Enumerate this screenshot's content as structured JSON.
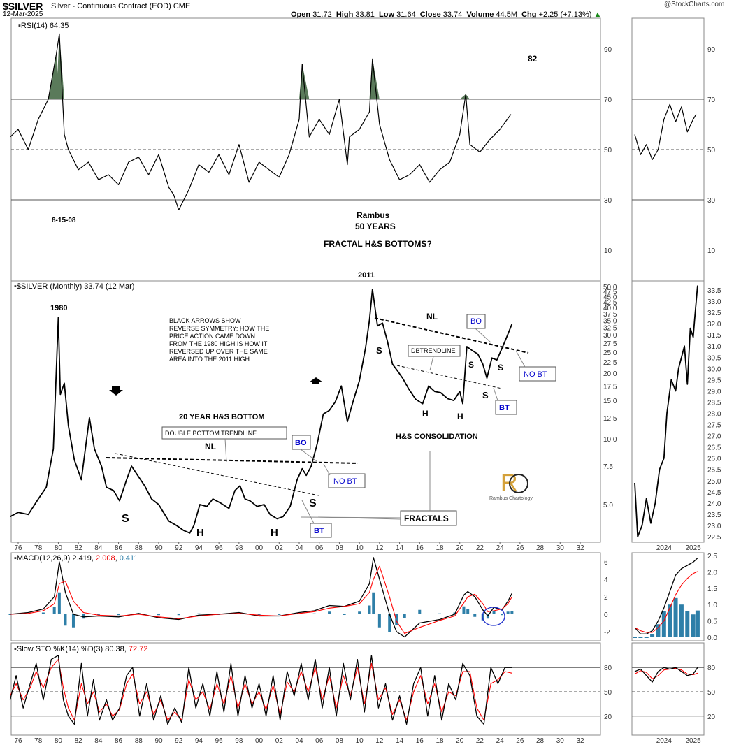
{
  "header": {
    "symbol": "$SILVER",
    "description": "Silver - Continuous Contract (EOD)",
    "exchange": "CME",
    "date": "12-Mar-2025",
    "open_label": "Open",
    "open": "31.72",
    "high_label": "High",
    "high": "33.81",
    "low_label": "Low",
    "low": "31.64",
    "close_label": "Close",
    "close": "33.74",
    "volume_label": "Volume",
    "volume": "44.5M",
    "chg_label": "Chg",
    "chg": "+2.25 (+7.13%)",
    "brand": "@StockCharts.com"
  },
  "colors": {
    "price": "#000000",
    "macd_signal": "#ff0000",
    "histogram": "#2e7fa8",
    "rsi_fill": "#5a7a5a",
    "annotation_blue": "#0000cc",
    "grid": "#cccccc"
  },
  "chart_data": [
    {
      "type": "line",
      "panel": "rsi",
      "legend": "RSI(14) 64.35",
      "ylim": [
        0,
        100
      ],
      "y_ticks": [
        "90",
        "70",
        "50",
        "30",
        "10"
      ],
      "reference_lines": [
        70,
        50,
        30
      ],
      "x": [
        1975.2,
        1976,
        1977,
        1978,
        1979,
        1979.8,
        1980.1,
        1980.6,
        1981,
        1982,
        1983,
        1984,
        1985,
        1986,
        1987,
        1988,
        1989,
        1990,
        1991,
        1991.5,
        1992,
        1993,
        1994,
        1995,
        1996,
        1997,
        1998,
        1999,
        2000,
        2001,
        2002,
        2003,
        2004,
        2004.3,
        2005,
        2006,
        2007,
        2008,
        2008.8,
        2009,
        2010,
        2011,
        2011.3,
        2012,
        2013,
        2014,
        2015,
        2016,
        2017,
        2018,
        2019,
        2020,
        2020.6,
        2021,
        2022,
        2023,
        2024,
        2025.1
      ],
      "values": [
        55,
        58,
        50,
        62,
        70,
        88,
        96,
        56,
        50,
        42,
        45,
        38,
        40,
        36,
        45,
        47,
        40,
        48,
        35,
        32,
        26,
        34,
        44,
        41,
        48,
        40,
        52,
        37,
        45,
        42,
        39,
        48,
        62,
        84,
        55,
        62,
        56,
        70,
        44,
        55,
        58,
        65,
        86,
        60,
        46,
        38,
        40,
        44,
        37,
        42,
        45,
        56,
        72,
        52,
        49,
        54,
        58,
        64
      ],
      "annotations": [
        "8-15-08",
        "82"
      ]
    },
    {
      "type": "line",
      "panel": "rsi-daily",
      "x": [
        2023.0,
        2023.2,
        2023.4,
        2023.6,
        2023.8,
        2024.0,
        2024.2,
        2024.4,
        2024.6,
        2024.8,
        2025.0,
        2025.1
      ],
      "values": [
        56,
        48,
        52,
        46,
        50,
        62,
        68,
        61,
        67,
        57,
        62,
        64
      ],
      "y_ticks": [
        "90",
        "70",
        "50",
        "30",
        "10"
      ]
    },
    {
      "type": "line",
      "panel": "price",
      "legend": "$SILVER (Monthly) 33.74 (12 Mar)",
      "y_ticks": [
        "50.0",
        "47.5",
        "45.0",
        "42.5",
        "40.0",
        "37.5",
        "35.0",
        "32.5",
        "30.0",
        "27.5",
        "25.0",
        "22.5",
        "20.0",
        "17.5",
        "15.0",
        "12.5",
        "10.0",
        "7.5",
        "5.0"
      ],
      "x_ticks": [
        "76",
        "78",
        "80",
        "82",
        "84",
        "86",
        "88",
        "90",
        "92",
        "94",
        "96",
        "98",
        "00",
        "02",
        "04",
        "06",
        "08",
        "10",
        "12",
        "14",
        "16",
        "18",
        "20",
        "22",
        "24",
        "26",
        "28",
        "30",
        "32"
      ],
      "x": [
        1975.2,
        1976,
        1977,
        1978,
        1978.8,
        1979.5,
        1980.0,
        1980.2,
        1980.6,
        1981,
        1981.6,
        1982.3,
        1983.1,
        1983.6,
        1984.3,
        1984.8,
        1985.5,
        1986.1,
        1986.8,
        1987.3,
        1987.9,
        1988.6,
        1989.3,
        1990,
        1991,
        1991.8,
        1992.5,
        1993.1,
        1993.5,
        1994.1,
        1994.8,
        1995.4,
        1996.1,
        1997,
        1997.6,
        1998.1,
        1998.6,
        1999.1,
        1999.8,
        2000.5,
        2001.1,
        2001.8,
        2002.4,
        2003.1,
        2003.8,
        2004.3,
        2004.7,
        2005.2,
        2005.8,
        2006.4,
        2007.0,
        2007.6,
        2008.2,
        2008.8,
        2009.4,
        2010.0,
        2010.6,
        2011.0,
        2011.3,
        2011.8,
        2012.3,
        2012.8,
        2013.3,
        2013.8,
        2014.3,
        2014.9,
        2015.6,
        2016.3,
        2016.9,
        2017.5,
        2018.1,
        2018.8,
        2019.4,
        2020.0,
        2020.3,
        2020.7,
        2021.2,
        2021.8,
        2022.3,
        2022.7,
        2023.2,
        2023.7,
        2024.2,
        2024.7,
        2025.2
      ],
      "values": [
        4.4,
        4.6,
        4.5,
        5.3,
        6.0,
        9.0,
        36.0,
        16.0,
        18.0,
        11.5,
        8.0,
        6.5,
        12.5,
        9.0,
        7.5,
        6.0,
        5.8,
        5.2,
        6.5,
        7.5,
        6.8,
        6.1,
        5.3,
        5.0,
        4.2,
        4.0,
        3.8,
        3.7,
        4.0,
        5.0,
        4.9,
        5.3,
        5.1,
        4.8,
        5.8,
        6.1,
        5.3,
        5.2,
        4.9,
        5.0,
        4.5,
        4.3,
        4.4,
        4.9,
        6.5,
        7.3,
        6.8,
        7.5,
        9.5,
        13.0,
        13.5,
        14.8,
        17.5,
        12.0,
        15.0,
        18.5,
        26.0,
        35.0,
        48.5,
        33.0,
        34.0,
        28.0,
        22.0,
        20.5,
        19.0,
        17.0,
        15.2,
        14.5,
        17.5,
        16.5,
        16.3,
        15.3,
        15.0,
        16.5,
        14.5,
        26.5,
        25.5,
        24.5,
        22.0,
        19.0,
        23.5,
        23.0,
        26.0,
        29.5,
        33.7
      ],
      "annotations": [
        "1980",
        "2011",
        "BLACK ARROWS SHOW",
        "REVERSE SYMMETRY: HOW THE",
        "PRICE ACTION CAME DOWN",
        "FROM THE 1980 HIGH IS HOW IT",
        "REVERSED UP OVER THE SAME",
        "AREA INTO THE 2011 HIGH",
        "20 YEAR H&S BOTTOM",
        "DOUBLE BOTTOM TRENDLINE",
        "NL",
        "BO",
        "NO BT",
        "BT",
        "S",
        "H",
        "H",
        "S",
        "FRACTALS",
        "H&S CONSOLIDATION",
        "DBTRENDLINE",
        "NL",
        "BO",
        "NO BT",
        "BT",
        "S",
        "S",
        "S",
        "S",
        "H",
        "H",
        "Rambus",
        "50 YEARS",
        "FRACTAL H&S BOTTOMS?",
        "Rambus Chartology"
      ]
    },
    {
      "type": "line",
      "panel": "price-daily",
      "x_ticks": [
        "2024",
        "2025"
      ],
      "y_ticks": [
        "33.5",
        "33.0",
        "32.5",
        "32.0",
        "31.5",
        "31.0",
        "30.5",
        "30.0",
        "29.5",
        "29.0",
        "28.5",
        "28.0",
        "27.5",
        "27.0",
        "26.5",
        "26.0",
        "25.5",
        "25.0",
        "24.5",
        "24.0",
        "23.5",
        "23.0",
        "22.5"
      ],
      "x": [
        2023.0,
        2023.1,
        2023.25,
        2023.4,
        2023.55,
        2023.7,
        2023.85,
        2024.0,
        2024.1,
        2024.25,
        2024.4,
        2024.5,
        2024.6,
        2024.7,
        2024.8,
        2024.9,
        2025.0,
        2025.05,
        2025.15
      ],
      "values": [
        24.9,
        22.5,
        23.0,
        24.2,
        23.1,
        24.0,
        25.5,
        26.0,
        28.0,
        29.5,
        29.0,
        30.0,
        30.5,
        31.0,
        29.3,
        31.8,
        31.4,
        32.2,
        33.7
      ]
    },
    {
      "type": "line",
      "panel": "macd",
      "legend": [
        "MACD(12,26,9)",
        "2.419",
        "2.008",
        "0.411"
      ],
      "y_ticks": [
        "6",
        "4",
        "2",
        "0",
        "-2"
      ],
      "x": [
        1975.2,
        1977,
        1978.5,
        1979.6,
        1980.1,
        1980.7,
        1981.5,
        1982.5,
        1984,
        1986,
        1988,
        1990,
        1992,
        1994,
        1996,
        1998,
        2000,
        2002,
        2004,
        2005.5,
        2007,
        2008.5,
        2010,
        2011.0,
        2011.4,
        2012,
        2013,
        2013.7,
        2014.5,
        2016,
        2018,
        2019.5,
        2020.4,
        2020.8,
        2021.5,
        2022.3,
        2022.8,
        2023.4,
        2024.2,
        2024.8,
        2025.2
      ],
      "values": [
        0,
        0.2,
        0.6,
        2.0,
        6.0,
        2.5,
        0.0,
        -0.3,
        -0.2,
        -0.3,
        0.1,
        -0.4,
        -0.6,
        -0.1,
        0.0,
        0.2,
        -0.2,
        -0.2,
        0.2,
        0.4,
        1.0,
        0.9,
        1.5,
        3.5,
        6.5,
        4.0,
        0.0,
        -2.0,
        -2.6,
        -1.0,
        -0.6,
        0.0,
        2.2,
        2.6,
        2.0,
        0.5,
        -0.2,
        0.8,
        0.5,
        1.5,
        2.4
      ],
      "signal": [
        0,
        0.1,
        0.4,
        1.2,
        3.5,
        3.8,
        1.5,
        0.2,
        -0.1,
        -0.2,
        0.0,
        -0.3,
        -0.5,
        -0.2,
        0.0,
        0.1,
        -0.1,
        -0.2,
        0.1,
        0.3,
        0.7,
        0.9,
        1.2,
        2.5,
        4.0,
        5.5,
        2.0,
        -0.8,
        -2.2,
        -1.5,
        -0.7,
        -0.2,
        1.3,
        2.0,
        2.3,
        1.2,
        0.3,
        0.4,
        0.6,
        1.2,
        2.0
      ]
    },
    {
      "type": "line",
      "panel": "macd-daily",
      "x": [
        2023.0,
        2023.2,
        2023.4,
        2023.6,
        2023.8,
        2024.0,
        2024.2,
        2024.4,
        2024.6,
        2024.8,
        2025.0,
        2025.15
      ],
      "values": [
        0.3,
        0.1,
        0.1,
        0.2,
        0.5,
        0.9,
        1.4,
        1.9,
        2.1,
        2.2,
        2.3,
        2.42
      ],
      "signal": [
        0.3,
        0.2,
        0.15,
        0.15,
        0.3,
        0.5,
        0.9,
        1.3,
        1.6,
        1.8,
        1.95,
        2.01
      ],
      "y_ticks": [
        "2.5",
        "2.0",
        "1.5",
        "1.0",
        "0.5",
        "0.0"
      ]
    },
    {
      "type": "line",
      "panel": "stochastic",
      "legend": [
        "Slow STO %K(14) %D(3)",
        "80.38",
        "72.72"
      ],
      "y_ticks": [
        "80",
        "50",
        "20"
      ],
      "reference_lines": [
        80,
        50,
        20
      ],
      "x_ticks": [
        "76",
        "78",
        "80",
        "82",
        "84",
        "86",
        "88",
        "90",
        "92",
        "94",
        "96",
        "98",
        "00",
        "02",
        "04",
        "06",
        "08",
        "10",
        "12",
        "14",
        "16",
        "18",
        "20",
        "22",
        "24",
        "26",
        "28",
        "30",
        "32"
      ],
      "x": [
        1975.2,
        1975.8,
        1976.5,
        1977.2,
        1977.8,
        1978.5,
        1979.3,
        1980.0,
        1980.5,
        1981.0,
        1981.6,
        1982.3,
        1982.9,
        1983.5,
        1984.1,
        1984.8,
        1985.4,
        1986.1,
        1986.8,
        1987.4,
        1988.1,
        1988.8,
        1989.5,
        1990.2,
        1990.9,
        1991.6,
        1992.3,
        1993.0,
        1993.7,
        1994.4,
        1995.1,
        1995.8,
        1996.5,
        1997.2,
        1997.9,
        1998.6,
        1999.3,
        2000.0,
        2000.7,
        2001.4,
        2002.1,
        2002.8,
        2003.5,
        2004.2,
        2004.9,
        2005.6,
        2006.3,
        2007.0,
        2007.7,
        2008.4,
        2009.1,
        2009.8,
        2010.5,
        2011.2,
        2011.9,
        2012.6,
        2013.3,
        2014.0,
        2014.7,
        2015.4,
        2016.1,
        2016.8,
        2017.5,
        2018.2,
        2018.9,
        2019.6,
        2020.3,
        2021.0,
        2021.7,
        2022.4,
        2023.1,
        2023.8,
        2024.5,
        2025.2
      ],
      "values": [
        40,
        70,
        30,
        60,
        85,
        40,
        90,
        95,
        40,
        20,
        10,
        85,
        20,
        65,
        15,
        40,
        15,
        30,
        70,
        80,
        20,
        60,
        15,
        45,
        10,
        30,
        12,
        80,
        30,
        60,
        20,
        75,
        25,
        85,
        20,
        70,
        30,
        60,
        20,
        70,
        15,
        75,
        45,
        85,
        40,
        90,
        30,
        80,
        20,
        85,
        40,
        90,
        25,
        95,
        30,
        60,
        15,
        45,
        10,
        60,
        80,
        20,
        70,
        15,
        60,
        40,
        85,
        70,
        20,
        10,
        80,
        60,
        80,
        80
      ],
      "signal": [
        45,
        60,
        40,
        55,
        75,
        55,
        80,
        90,
        55,
        30,
        15,
        60,
        35,
        50,
        25,
        35,
        20,
        28,
        60,
        72,
        35,
        50,
        22,
        40,
        15,
        25,
        15,
        65,
        40,
        50,
        28,
        60,
        35,
        70,
        30,
        60,
        35,
        50,
        28,
        58,
        22,
        62,
        50,
        75,
        50,
        80,
        40,
        70,
        30,
        70,
        45,
        80,
        35,
        85,
        40,
        55,
        22,
        40,
        15,
        50,
        70,
        35,
        60,
        25,
        50,
        45,
        75,
        75,
        30,
        15,
        60,
        65,
        75,
        73
      ]
    },
    {
      "type": "line",
      "panel": "stochastic-daily",
      "x_ticks": [
        "2024",
        "2025"
      ],
      "y_ticks": [
        "80",
        "50",
        "20"
      ],
      "x": [
        2023.0,
        2023.2,
        2023.4,
        2023.6,
        2023.8,
        2024.0,
        2024.2,
        2024.4,
        2024.6,
        2024.8,
        2025.0,
        2025.15
      ],
      "values": [
        75,
        78,
        70,
        62,
        75,
        80,
        78,
        80,
        75,
        70,
        72,
        80
      ],
      "signal": [
        72,
        76,
        74,
        66,
        70,
        77,
        78,
        79,
        77,
        72,
        71,
        73
      ]
    }
  ]
}
